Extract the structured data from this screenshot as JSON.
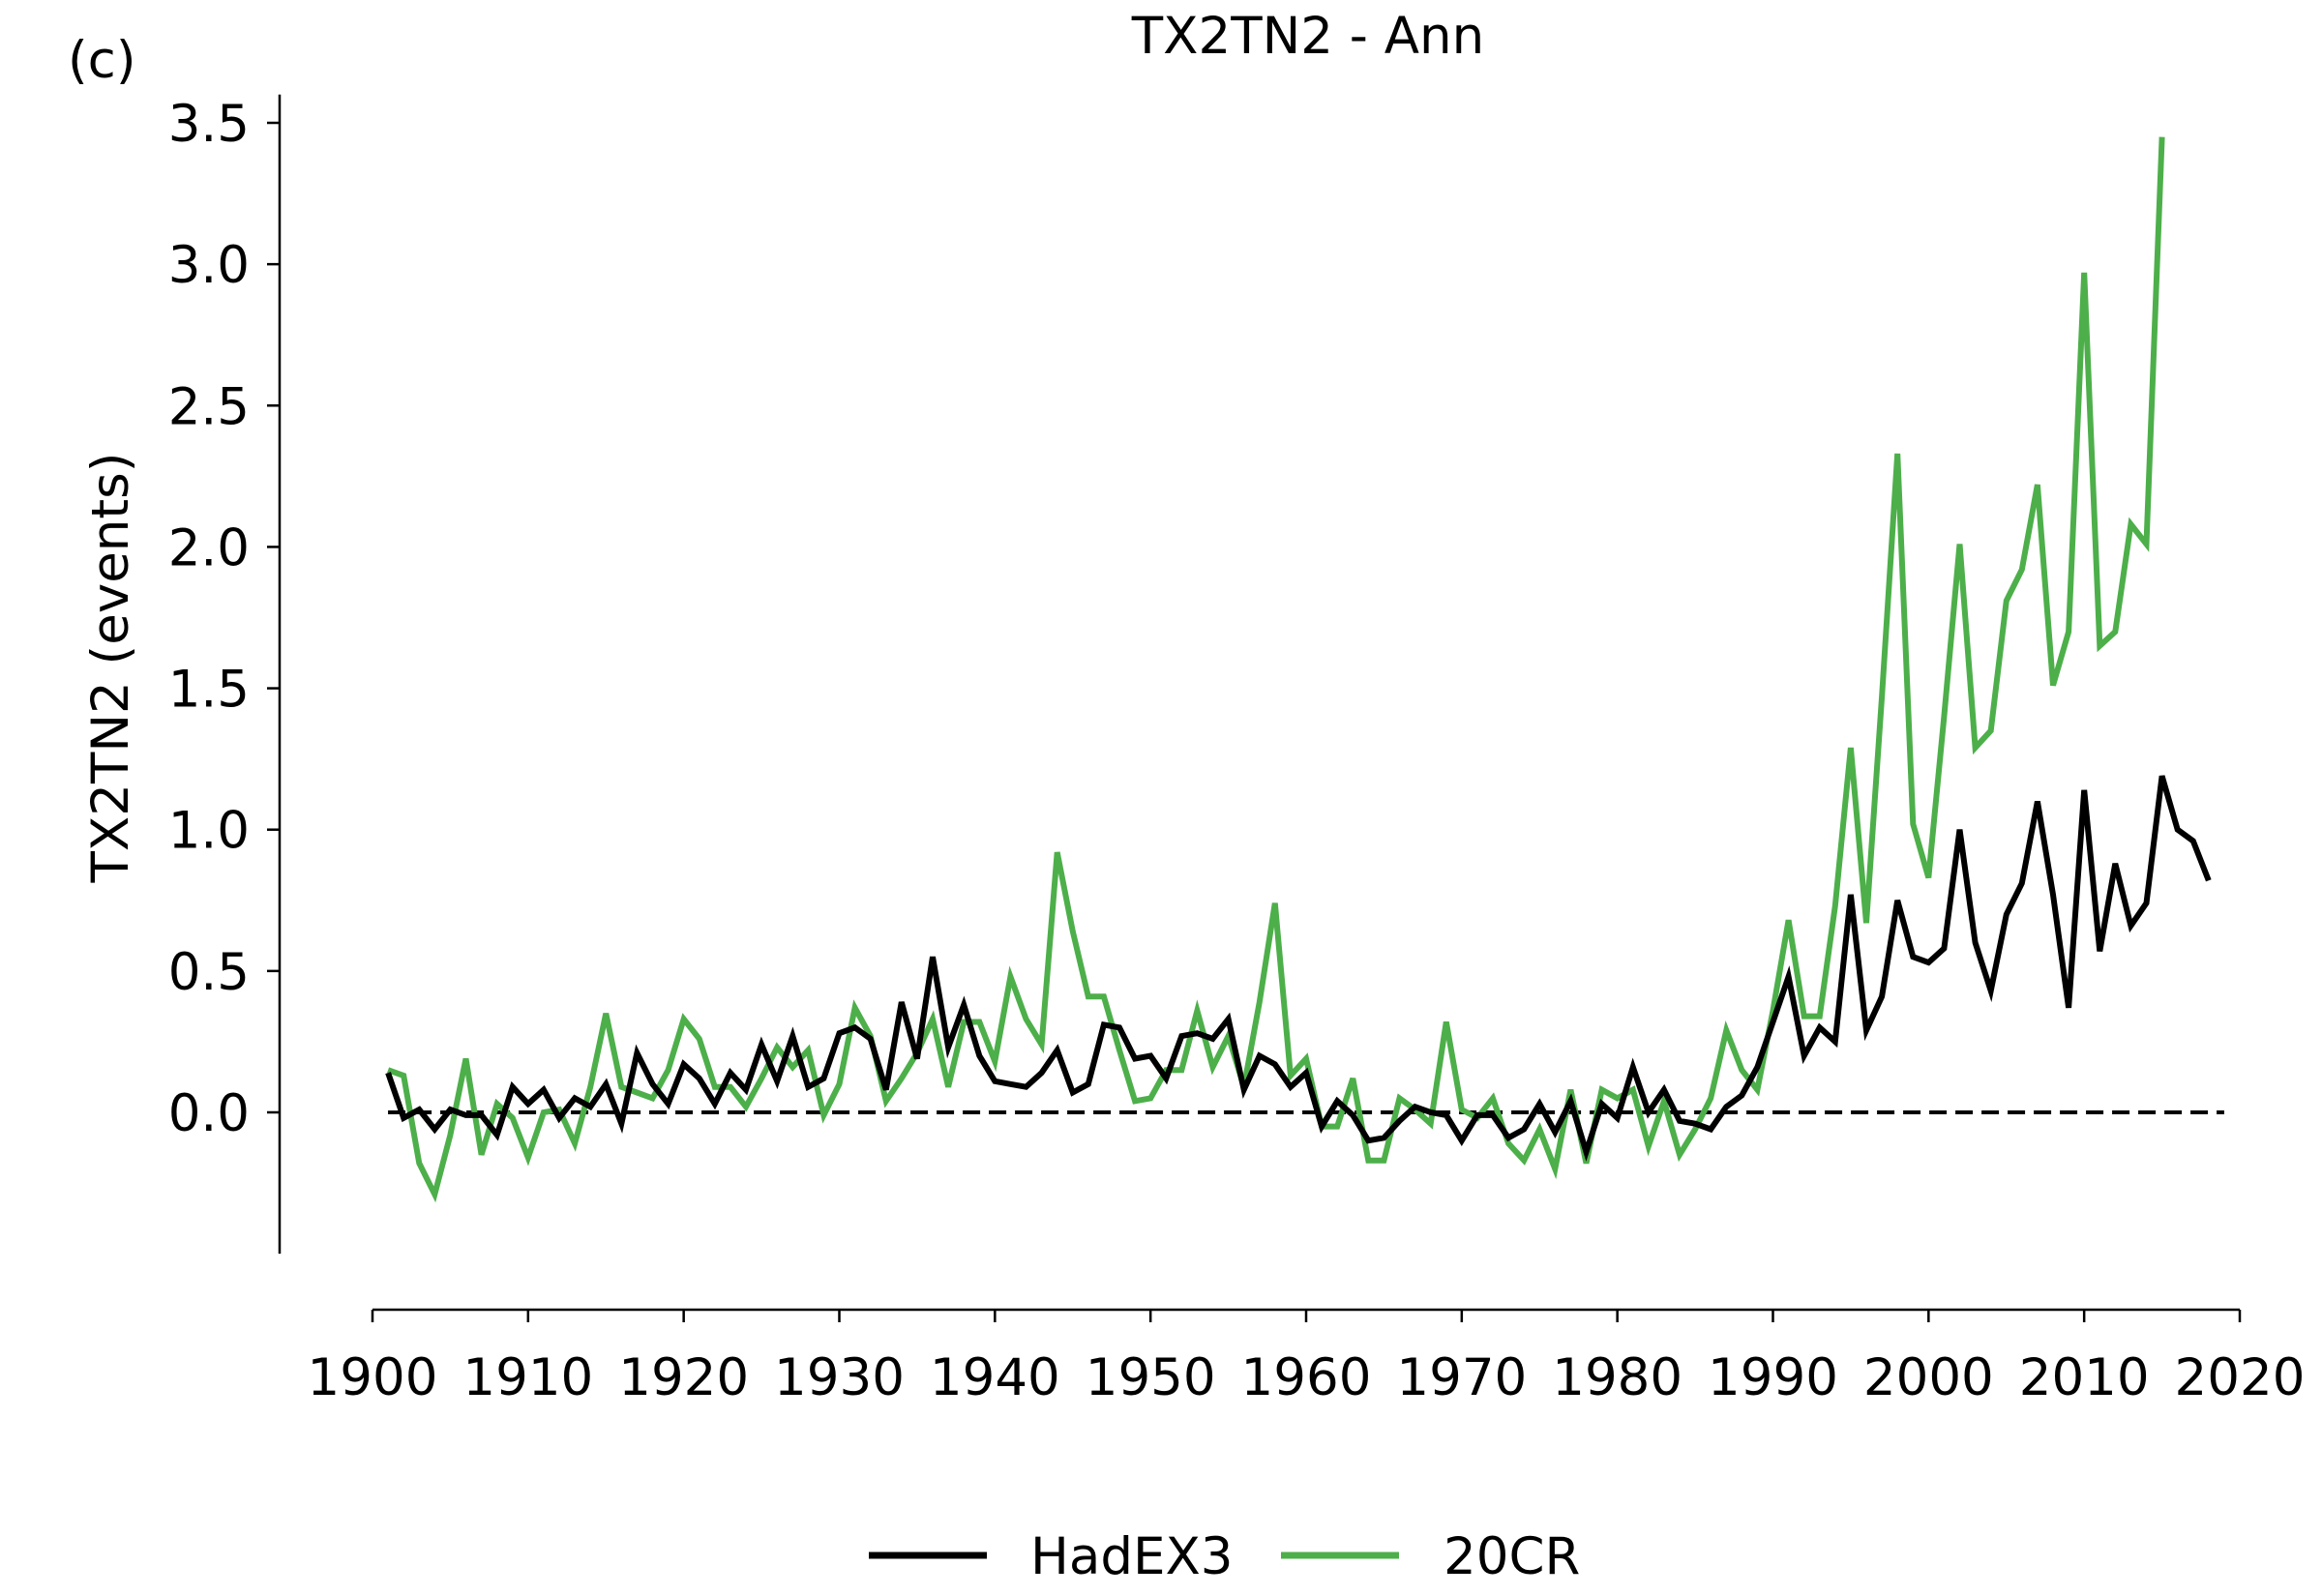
{
  "colors": {
    "hadex3": "#000000",
    "twentycr": "#4daf4a",
    "zero_line": "#000000"
  },
  "chart_data": {
    "type": "line",
    "panel_label": "(c)",
    "title": "TX2TN2 - Ann",
    "xlabel": "",
    "ylabel": "TX2TN2 (events)",
    "xlim": [
      1900,
      2020
    ],
    "ylim": [
      -0.5,
      3.6
    ],
    "y_axis_visible_range": [
      -0.5,
      3.6
    ],
    "xticks": [
      1900,
      1910,
      1920,
      1930,
      1940,
      1950,
      1960,
      1970,
      1980,
      1990,
      2000,
      2010,
      2020
    ],
    "xtick_labels": [
      "1900",
      "1910",
      "1920",
      "1930",
      "1940",
      "1950",
      "1960",
      "1970",
      "1980",
      "1990",
      "2000",
      "2010",
      "2020"
    ],
    "yticks": [
      0.0,
      0.5,
      1.0,
      1.5,
      2.0,
      2.5,
      3.0,
      3.5
    ],
    "ytick_labels": [
      "0.0",
      "0.5",
      "1.0",
      "1.5",
      "2.0",
      "2.5",
      "3.0",
      "3.5"
    ],
    "grid": false,
    "legend_position": "bottom-center",
    "reference_line": {
      "y": 0.0,
      "style": "dashed"
    },
    "series": [
      {
        "name": "HadEX3",
        "color": "#000000",
        "x": [
          1901,
          1902,
          1903,
          1904,
          1905,
          1906,
          1907,
          1908,
          1909,
          1910,
          1911,
          1912,
          1913,
          1914,
          1915,
          1916,
          1917,
          1918,
          1919,
          1920,
          1921,
          1922,
          1923,
          1924,
          1925,
          1926,
          1927,
          1928,
          1929,
          1930,
          1931,
          1932,
          1933,
          1934,
          1935,
          1936,
          1937,
          1938,
          1939,
          1940,
          1941,
          1942,
          1943,
          1944,
          1945,
          1946,
          1947,
          1948,
          1949,
          1950,
          1951,
          1952,
          1953,
          1954,
          1955,
          1956,
          1957,
          1958,
          1959,
          1960,
          1961,
          1962,
          1963,
          1964,
          1965,
          1966,
          1967,
          1968,
          1969,
          1970,
          1971,
          1972,
          1973,
          1974,
          1975,
          1976,
          1977,
          1978,
          1979,
          1980,
          1981,
          1982,
          1983,
          1984,
          1985,
          1986,
          1987,
          1988,
          1989,
          1990,
          1991,
          1992,
          1993,
          1994,
          1995,
          1996,
          1997,
          1998,
          1999,
          2000,
          2001,
          2002,
          2003,
          2004,
          2005,
          2006,
          2007,
          2008,
          2009,
          2010,
          2011,
          2012,
          2013,
          2014,
          2015,
          2016,
          2017,
          2018
        ],
        "y": [
          0.14,
          -0.02,
          0.01,
          -0.06,
          0.01,
          -0.01,
          -0.01,
          -0.08,
          0.09,
          0.03,
          0.08,
          -0.02,
          0.05,
          0.02,
          0.1,
          -0.04,
          0.21,
          0.1,
          0.03,
          0.17,
          0.12,
          0.03,
          0.14,
          0.08,
          0.24,
          0.11,
          0.27,
          0.09,
          0.12,
          0.28,
          0.3,
          0.26,
          0.08,
          0.39,
          0.19,
          0.55,
          0.23,
          0.38,
          0.2,
          0.11,
          0.1,
          0.09,
          0.14,
          0.22,
          0.07,
          0.1,
          0.31,
          0.3,
          0.19,
          0.2,
          0.12,
          0.27,
          0.28,
          0.26,
          0.33,
          0.08,
          0.2,
          0.17,
          0.09,
          0.14,
          -0.05,
          0.04,
          -0.01,
          -0.1,
          -0.09,
          -0.03,
          0.02,
          0.0,
          -0.01,
          -0.1,
          -0.01,
          -0.01,
          -0.09,
          -0.06,
          0.03,
          -0.07,
          0.04,
          -0.14,
          0.03,
          -0.02,
          0.16,
          0.0,
          0.08,
          -0.03,
          -0.04,
          -0.06,
          0.02,
          0.06,
          0.16,
          0.32,
          0.48,
          0.2,
          0.3,
          0.25,
          0.77,
          0.29,
          0.41,
          0.75,
          0.55,
          0.53,
          0.58,
          1.0,
          0.6,
          0.43,
          0.7,
          0.81,
          1.1,
          0.77,
          0.37,
          1.14,
          0.57,
          0.88,
          0.66,
          0.74,
          1.19,
          1.0,
          0.96,
          0.82
        ]
      },
      {
        "name": "20CR",
        "color": "#4daf4a",
        "x": [
          1901,
          1902,
          1903,
          1904,
          1905,
          1906,
          1907,
          1908,
          1909,
          1910,
          1911,
          1912,
          1913,
          1914,
          1915,
          1916,
          1917,
          1918,
          1919,
          1920,
          1921,
          1922,
          1923,
          1924,
          1925,
          1926,
          1927,
          1928,
          1929,
          1930,
          1931,
          1932,
          1933,
          1934,
          1935,
          1936,
          1937,
          1938,
          1939,
          1940,
          1941,
          1942,
          1943,
          1944,
          1945,
          1946,
          1947,
          1948,
          1949,
          1950,
          1951,
          1952,
          1953,
          1954,
          1955,
          1956,
          1957,
          1958,
          1959,
          1960,
          1961,
          1962,
          1963,
          1964,
          1965,
          1966,
          1967,
          1968,
          1969,
          1970,
          1971,
          1972,
          1973,
          1974,
          1975,
          1976,
          1977,
          1978,
          1979,
          1980,
          1981,
          1982,
          1983,
          1984,
          1985,
          1986,
          1987,
          1988,
          1989,
          1990,
          1991,
          1992,
          1993,
          1994,
          1995,
          1996,
          1997,
          1998,
          1999,
          2000,
          2001,
          2002,
          2003,
          2004,
          2005,
          2006,
          2007,
          2008,
          2009,
          2010,
          2011,
          2012,
          2013,
          2014,
          2015
        ],
        "y": [
          0.15,
          0.13,
          -0.18,
          -0.29,
          -0.08,
          0.19,
          -0.15,
          0.03,
          -0.02,
          -0.16,
          0.0,
          0.01,
          -0.11,
          0.09,
          0.35,
          0.09,
          0.07,
          0.05,
          0.15,
          0.33,
          0.26,
          0.09,
          0.09,
          0.02,
          0.12,
          0.23,
          0.16,
          0.22,
          -0.01,
          0.1,
          0.37,
          0.27,
          0.04,
          0.12,
          0.21,
          0.33,
          0.09,
          0.32,
          0.32,
          0.18,
          0.48,
          0.33,
          0.24,
          0.92,
          0.64,
          0.41,
          0.41,
          0.22,
          0.04,
          0.05,
          0.15,
          0.15,
          0.36,
          0.16,
          0.27,
          0.09,
          0.39,
          0.74,
          0.13,
          0.19,
          -0.05,
          -0.05,
          0.12,
          -0.17,
          -0.17,
          0.05,
          0.01,
          -0.04,
          0.32,
          0.01,
          -0.02,
          0.05,
          -0.11,
          -0.17,
          -0.06,
          -0.2,
          0.08,
          -0.18,
          0.08,
          0.05,
          0.08,
          -0.12,
          0.04,
          -0.15,
          -0.06,
          0.05,
          0.29,
          0.15,
          0.08,
          0.36,
          0.68,
          0.34,
          0.34,
          0.73,
          1.29,
          0.67,
          1.47,
          2.33,
          1.02,
          0.83,
          1.4,
          2.01,
          1.29,
          1.35,
          1.81,
          1.92,
          2.22,
          1.51,
          1.7,
          2.97,
          1.65,
          1.7,
          2.08,
          2.01,
          3.45
        ]
      }
    ]
  }
}
